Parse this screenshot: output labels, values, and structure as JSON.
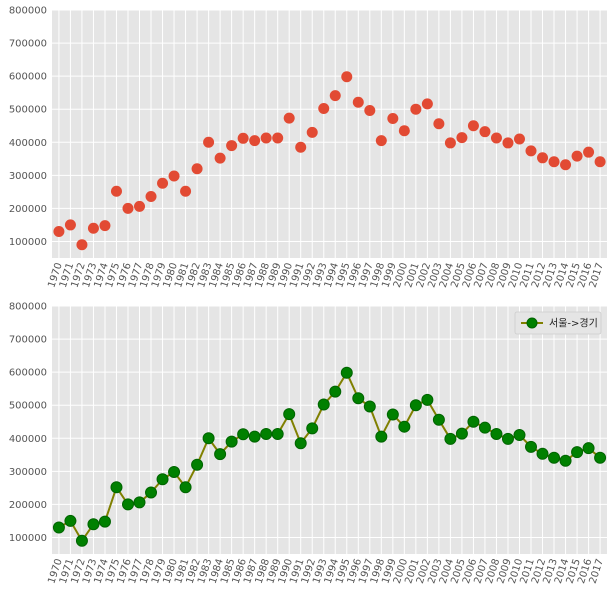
{
  "chart_data": [
    {
      "type": "scatter",
      "x": [
        "1970",
        "1971",
        "1972",
        "1973",
        "1974",
        "1975",
        "1976",
        "1977",
        "1978",
        "1979",
        "1980",
        "1981",
        "1982",
        "1983",
        "1984",
        "1985",
        "1986",
        "1987",
        "1988",
        "1989",
        "1990",
        "1991",
        "1992",
        "1993",
        "1994",
        "1995",
        "1996",
        "1997",
        "1998",
        "1999",
        "2000",
        "2001",
        "2002",
        "2003",
        "2004",
        "2005",
        "2006",
        "2007",
        "2008",
        "2009",
        "2010",
        "2011",
        "2012",
        "2013",
        "2014",
        "2015",
        "2016",
        "2017"
      ],
      "series": [
        {
          "values": [
            130000,
            150000,
            90000,
            140000,
            148000,
            252000,
            200000,
            206000,
            236000,
            276000,
            298000,
            252000,
            320000,
            400000,
            352000,
            390000,
            412000,
            405000,
            413000,
            413000,
            473000,
            385000,
            430000,
            502000,
            541000,
            598000,
            521000,
            496000,
            405000,
            472000,
            435000,
            500000,
            516000,
            456000,
            398000,
            414000,
            450000,
            432000,
            413000,
            398000,
            410000,
            374000,
            353000,
            341000,
            332000,
            358000,
            370000,
            341000
          ],
          "color": "#e24a33"
        }
      ],
      "ylim": [
        50000,
        800000
      ],
      "yticks": [
        100000,
        200000,
        300000,
        400000,
        500000,
        600000,
        700000,
        800000
      ],
      "grid": true,
      "title": "",
      "xlabel": "",
      "ylabel": ""
    },
    {
      "type": "line",
      "x": [
        "1970",
        "1971",
        "1972",
        "1973",
        "1974",
        "1975",
        "1976",
        "1977",
        "1978",
        "1979",
        "1980",
        "1981",
        "1982",
        "1983",
        "1984",
        "1985",
        "1986",
        "1987",
        "1988",
        "1989",
        "1990",
        "1991",
        "1992",
        "1993",
        "1994",
        "1995",
        "1996",
        "1997",
        "1998",
        "1999",
        "2000",
        "2001",
        "2002",
        "2003",
        "2004",
        "2005",
        "2006",
        "2007",
        "2008",
        "2009",
        "2010",
        "2011",
        "2012",
        "2013",
        "2014",
        "2015",
        "2016",
        "2017"
      ],
      "series": [
        {
          "name": "서울->경기",
          "values": [
            130000,
            150000,
            90000,
            140000,
            148000,
            252000,
            200000,
            206000,
            236000,
            276000,
            298000,
            252000,
            320000,
            400000,
            352000,
            390000,
            412000,
            405000,
            413000,
            413000,
            473000,
            385000,
            430000,
            502000,
            541000,
            598000,
            521000,
            496000,
            405000,
            472000,
            435000,
            500000,
            516000,
            456000,
            398000,
            414000,
            450000,
            432000,
            413000,
            398000,
            410000,
            374000,
            353000,
            341000,
            332000,
            358000,
            370000,
            341000
          ],
          "line_color": "#808000",
          "marker_color": "#008000",
          "marker_edge": "#006400"
        }
      ],
      "ylim": [
        50000,
        800000
      ],
      "yticks": [
        100000,
        200000,
        300000,
        400000,
        500000,
        600000,
        700000,
        800000
      ],
      "grid": true,
      "legend": "top-right",
      "title": "",
      "xlabel": "",
      "ylabel": ""
    }
  ]
}
